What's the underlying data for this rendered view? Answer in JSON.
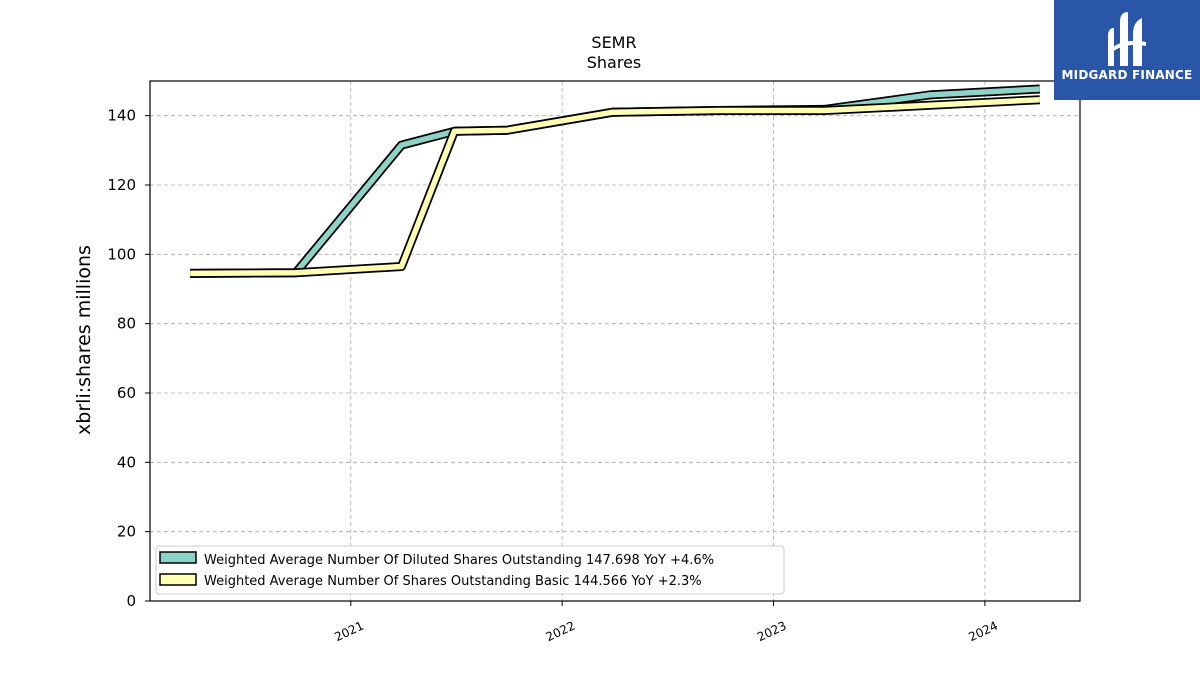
{
  "chart_data": {
    "type": "line",
    "title": "SEMR",
    "subtitle": "Shares",
    "ylabel": "xbrli:shares millions",
    "xlabel": "",
    "ylim": [
      0,
      150
    ],
    "xlim": [
      2020.05,
      2024.45
    ],
    "yticks": [
      0,
      20,
      40,
      60,
      80,
      100,
      120,
      140
    ],
    "xticks": [
      2021,
      2022,
      2023,
      2024
    ],
    "xtick_labels": [
      "2021",
      "2022",
      "2023",
      "2024"
    ],
    "grid": true,
    "legend_position": "lower-left",
    "series": [
      {
        "name": "Weighted Average Number Of Diluted Shares Outstanding",
        "legend_label": "Weighted Average Number Of Diluted Shares Outstanding  147.698 YoY +4.6%",
        "color": "#8dd3c7",
        "points": [
          [
            2020.24,
            94.5
          ],
          [
            2020.74,
            94.7
          ],
          [
            2021.24,
            131.5
          ],
          [
            2021.49,
            135.5
          ],
          [
            2021.74,
            135.8
          ],
          [
            2022.24,
            141.0
          ],
          [
            2022.74,
            141.5
          ],
          [
            2023.24,
            141.8
          ],
          [
            2023.74,
            146.0
          ],
          [
            2024.26,
            147.7
          ]
        ]
      },
      {
        "name": "Weighted Average Number Of Shares Outstanding Basic",
        "legend_label": "Weighted Average Number Of Shares Outstanding Basic  144.566 YoY +2.3%",
        "color": "#ffffb3",
        "points": [
          [
            2020.24,
            94.5
          ],
          [
            2020.74,
            94.7
          ],
          [
            2021.24,
            96.5
          ],
          [
            2021.49,
            135.5
          ],
          [
            2021.74,
            135.8
          ],
          [
            2022.24,
            141.0
          ],
          [
            2022.74,
            141.5
          ],
          [
            2023.24,
            141.5
          ],
          [
            2023.74,
            143.0
          ],
          [
            2024.26,
            144.6
          ]
        ]
      }
    ]
  },
  "logo": {
    "text": "MIDGARD FINANCE",
    "color": "#2a56a8"
  }
}
